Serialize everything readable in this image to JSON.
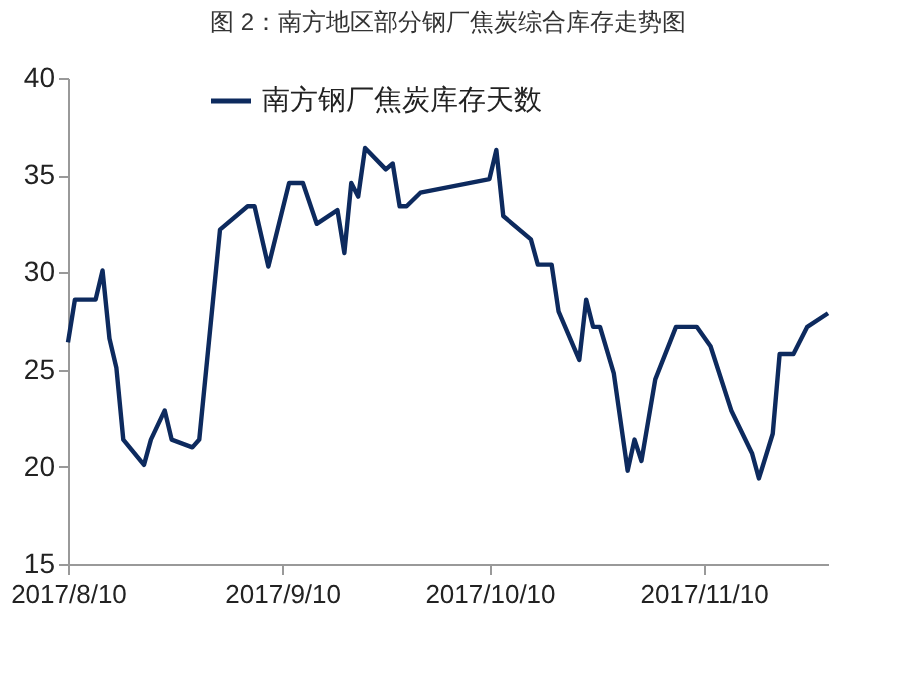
{
  "chart_data": {
    "type": "line",
    "title": "图 2：南方地区部分钢厂焦炭综合库存走势图",
    "x": [
      "2017-08-10",
      "2017-08-11",
      "2017-08-14",
      "2017-08-15",
      "2017-08-16",
      "2017-08-17",
      "2017-08-18",
      "2017-08-21",
      "2017-08-22",
      "2017-08-24",
      "2017-08-25",
      "2017-08-28",
      "2017-08-29",
      "2017-09-01",
      "2017-09-05",
      "2017-09-06",
      "2017-09-08",
      "2017-09-11",
      "2017-09-13",
      "2017-09-15",
      "2017-09-18",
      "2017-09-19",
      "2017-09-20",
      "2017-09-21",
      "2017-09-22",
      "2017-09-25",
      "2017-09-26",
      "2017-09-27",
      "2017-09-28",
      "2017-09-30",
      "2017-10-10",
      "2017-10-11",
      "2017-10-12",
      "2017-10-16",
      "2017-10-17",
      "2017-10-19",
      "2017-10-20",
      "2017-10-23",
      "2017-10-24",
      "2017-10-25",
      "2017-10-26",
      "2017-10-28",
      "2017-10-30",
      "2017-10-31",
      "2017-11-01",
      "2017-11-03",
      "2017-11-06",
      "2017-11-09",
      "2017-11-11",
      "2017-11-14",
      "2017-11-17",
      "2017-11-18",
      "2017-11-20",
      "2017-11-21",
      "2017-11-23",
      "2017-11-25",
      "2017-11-28"
    ],
    "series": [
      {
        "name": "南方钢厂焦炭库存天数",
        "color": "#0d2a5e",
        "values": [
          26.4,
          28.6,
          28.6,
          30.1,
          26.6,
          25.1,
          21.4,
          20.1,
          21.4,
          22.9,
          21.4,
          21.0,
          21.4,
          32.2,
          33.4,
          33.4,
          30.3,
          34.6,
          34.6,
          32.5,
          33.2,
          31.0,
          34.6,
          33.9,
          36.4,
          35.3,
          35.6,
          33.4,
          33.4,
          34.1,
          34.8,
          36.3,
          32.9,
          31.7,
          30.4,
          30.4,
          28.0,
          25.5,
          28.6,
          27.2,
          27.2,
          24.8,
          19.8,
          21.4,
          20.3,
          24.5,
          27.2,
          27.2,
          26.2,
          22.9,
          20.7,
          19.4,
          21.7,
          25.8,
          25.8,
          27.2,
          27.9
        ]
      }
    ],
    "xlim": [
      "2017-08-10",
      "2017-11-28"
    ],
    "xticks": [
      {
        "value": "2017-08-10",
        "label": "2017/8/10"
      },
      {
        "value": "2017-09-10",
        "label": "2017/9/10"
      },
      {
        "value": "2017-10-10",
        "label": "2017/10/10"
      },
      {
        "value": "2017-11-10",
        "label": "2017/11/10"
      }
    ],
    "ylim": [
      15,
      40
    ],
    "yticks": [
      15,
      20,
      25,
      30,
      35,
      40
    ],
    "grid": false,
    "legend": "top",
    "marker": "none",
    "line_style": "solid"
  }
}
